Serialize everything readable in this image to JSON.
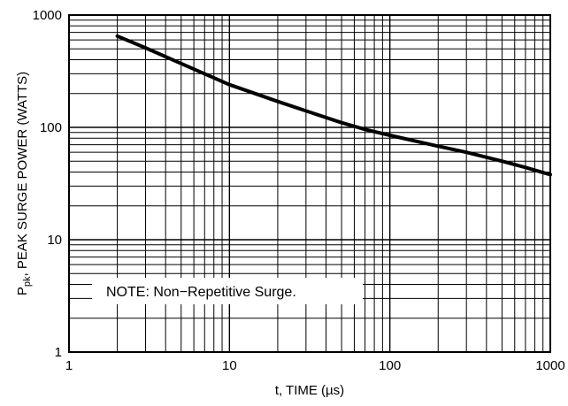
{
  "chart_data": {
    "type": "line",
    "xlabel": "t, TIME (µs)",
    "ylabel_sub": "pk",
    "ylabel_main": "P",
    "ylabel_rest": ", PEAK SURGE POWER (WATTS)",
    "x_scale": "log",
    "y_scale": "log",
    "xlim": [
      1,
      1000
    ],
    "ylim": [
      1,
      1000
    ],
    "x_ticks": [
      "1",
      "10",
      "100",
      "1000"
    ],
    "y_ticks": [
      "1",
      "10",
      "100",
      "1000"
    ],
    "grid": true,
    "annotation": "NOTE: Non−Repetitive Surge.",
    "series": [
      {
        "x": [
          2,
          3,
          5,
          7,
          10,
          20,
          30,
          50,
          70,
          100,
          200,
          300,
          500,
          700,
          1000
        ],
        "values": [
          650,
          510,
          370,
          300,
          240,
          170,
          140,
          110,
          96,
          85,
          68,
          60,
          50,
          44,
          38
        ]
      }
    ]
  }
}
